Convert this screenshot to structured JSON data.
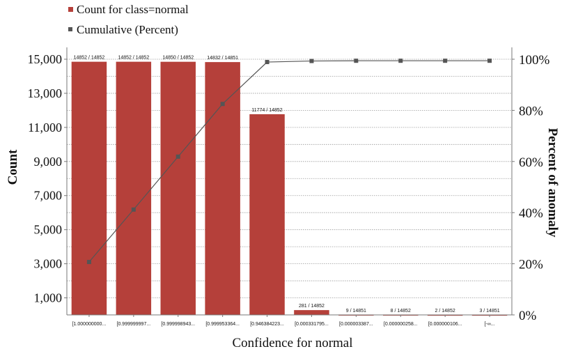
{
  "chart_data": {
    "type": "bar",
    "categories": [
      "[1.000000000...",
      "[0.999999997...",
      "[0.999998943...",
      "[0.999953364...",
      "[0.946384223...",
      "[0.000331795...",
      "[0.000003387...",
      "[0.000000258...",
      "[0.000000106...",
      "[-∞..."
    ],
    "series": [
      {
        "name": "Count for class=normal",
        "type": "bar",
        "axis": "left",
        "values": [
          14852,
          14852,
          14850,
          14832,
          11774,
          281,
          9,
          8,
          2,
          3
        ],
        "labels": [
          "14852 / 14852",
          "14852 / 14852",
          "14850 / 14852",
          "14832 / 14851",
          "11774 / 14852",
          "281 / 14852",
          "9 / 14851",
          "8 / 14852",
          "2 / 14852",
          "3 / 14851"
        ],
        "color": "#b5403a"
      },
      {
        "name": "Cumulative (Percent)",
        "type": "line",
        "axis": "right",
        "values": [
          20.7,
          41.2,
          61.9,
          82.5,
          98.9,
          99.3,
          99.4,
          99.4,
          99.4,
          99.4
        ],
        "color": "#555555"
      }
    ],
    "xlabel": "Confidence for normal",
    "ylabel": "Count",
    "y2label": "Percent of anomaly",
    "ylim": [
      0,
      15000
    ],
    "y2lim": [
      0,
      100
    ],
    "yticks": [
      "1,000",
      "3,000",
      "5,000",
      "7,000",
      "9,000",
      "11,000",
      "13,000",
      "15,000"
    ],
    "y2ticks": [
      "0%",
      "20%",
      "40%",
      "60%",
      "80%",
      "100%"
    ],
    "grid": true,
    "legend_placement": "top-left"
  }
}
